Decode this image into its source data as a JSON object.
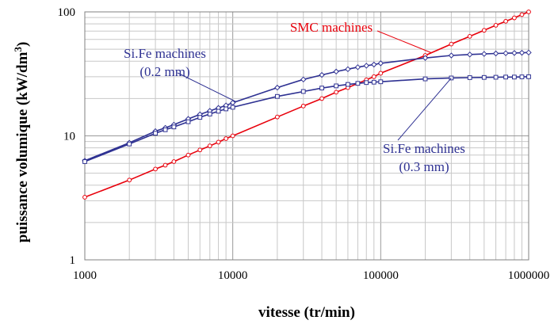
{
  "chart_data": {
    "type": "line",
    "title": "",
    "xlabel": "vitesse (tr/min)",
    "ylabel": "puissance volumique (kW/dm",
    "ylabel_sup": "3",
    "ylabel_end": ")",
    "xscale": "log",
    "yscale": "log",
    "xlim": [
      1000,
      1000000
    ],
    "ylim": [
      1,
      100
    ],
    "grid": true,
    "x_ticks": [
      1000,
      10000,
      100000,
      1000000
    ],
    "x_tick_labels": [
      "1000",
      "10000",
      "100000",
      "1000000"
    ],
    "y_ticks": [
      1,
      10,
      100
    ],
    "y_tick_labels": [
      "1",
      "10",
      "100"
    ],
    "series": [
      {
        "name": "SMC machines",
        "color": "#e8000b",
        "marker": "circle",
        "x": [
          1000,
          2000,
          3000,
          3500,
          4000,
          5000,
          6000,
          7000,
          8000,
          9000,
          10000,
          20000,
          30000,
          40000,
          50000,
          60000,
          70000,
          80000,
          90000,
          100000,
          200000,
          300000,
          400000,
          500000,
          600000,
          700000,
          800000,
          900000,
          1000000
        ],
        "y": [
          3.2,
          4.4,
          5.4,
          5.8,
          6.2,
          7.0,
          7.7,
          8.3,
          8.9,
          9.5,
          10.0,
          14.2,
          17.4,
          20.0,
          22.5,
          24.5,
          26.5,
          28.3,
          30.0,
          32.0,
          44.5,
          55.0,
          63.5,
          71.0,
          78.0,
          84.0,
          89.5,
          95.0,
          100.0
        ]
      },
      {
        "name": "Si.Fe machines (0.2 mm)",
        "color": "#2e3192",
        "marker": "diamond",
        "x": [
          1000,
          2000,
          3000,
          3500,
          4000,
          5000,
          6000,
          7000,
          8000,
          9000,
          10000,
          20000,
          30000,
          40000,
          50000,
          60000,
          70000,
          80000,
          90000,
          100000,
          200000,
          300000,
          400000,
          500000,
          600000,
          700000,
          800000,
          900000,
          1000000
        ],
        "y": [
          6.3,
          8.8,
          10.9,
          11.6,
          12.3,
          13.7,
          14.9,
          15.9,
          16.8,
          17.6,
          18.5,
          24.5,
          28.5,
          31.0,
          33.0,
          34.5,
          35.8,
          36.8,
          37.6,
          38.5,
          42.5,
          44.5,
          45.3,
          45.8,
          46.2,
          46.4,
          46.6,
          46.8,
          47.0
        ]
      },
      {
        "name": "Si.Fe machines (0.3 mm)",
        "color": "#2e3192",
        "marker": "square",
        "x": [
          1000,
          2000,
          3000,
          3500,
          4000,
          5000,
          6000,
          7000,
          8000,
          9000,
          10000,
          20000,
          30000,
          40000,
          50000,
          60000,
          70000,
          80000,
          90000,
          100000,
          200000,
          300000,
          400000,
          500000,
          600000,
          700000,
          800000,
          900000,
          1000000
        ],
        "y": [
          6.2,
          8.6,
          10.5,
          11.2,
          11.8,
          13.0,
          14.1,
          15.0,
          15.8,
          16.5,
          17.0,
          20.8,
          22.8,
          24.3,
          25.3,
          26.0,
          26.5,
          26.9,
          27.1,
          27.3,
          28.8,
          29.3,
          29.5,
          29.6,
          29.7,
          29.8,
          29.8,
          29.9,
          30.0
        ]
      }
    ],
    "annotations": [
      {
        "id": "smc",
        "lines": [
          "SMC machines"
        ],
        "color": "#e8000b",
        "series": 0,
        "point_x": 220000
      },
      {
        "id": "sife02",
        "lines": [
          "Si.Fe machines",
          "(0.2 mm)"
        ],
        "color": "#2e3192",
        "series": 1,
        "point_x": 10500
      },
      {
        "id": "sife03",
        "lines": [
          "Si.Fe machines",
          "(0.3 mm)"
        ],
        "color": "#2e3192",
        "series": 2,
        "point_x": 300000
      }
    ]
  }
}
